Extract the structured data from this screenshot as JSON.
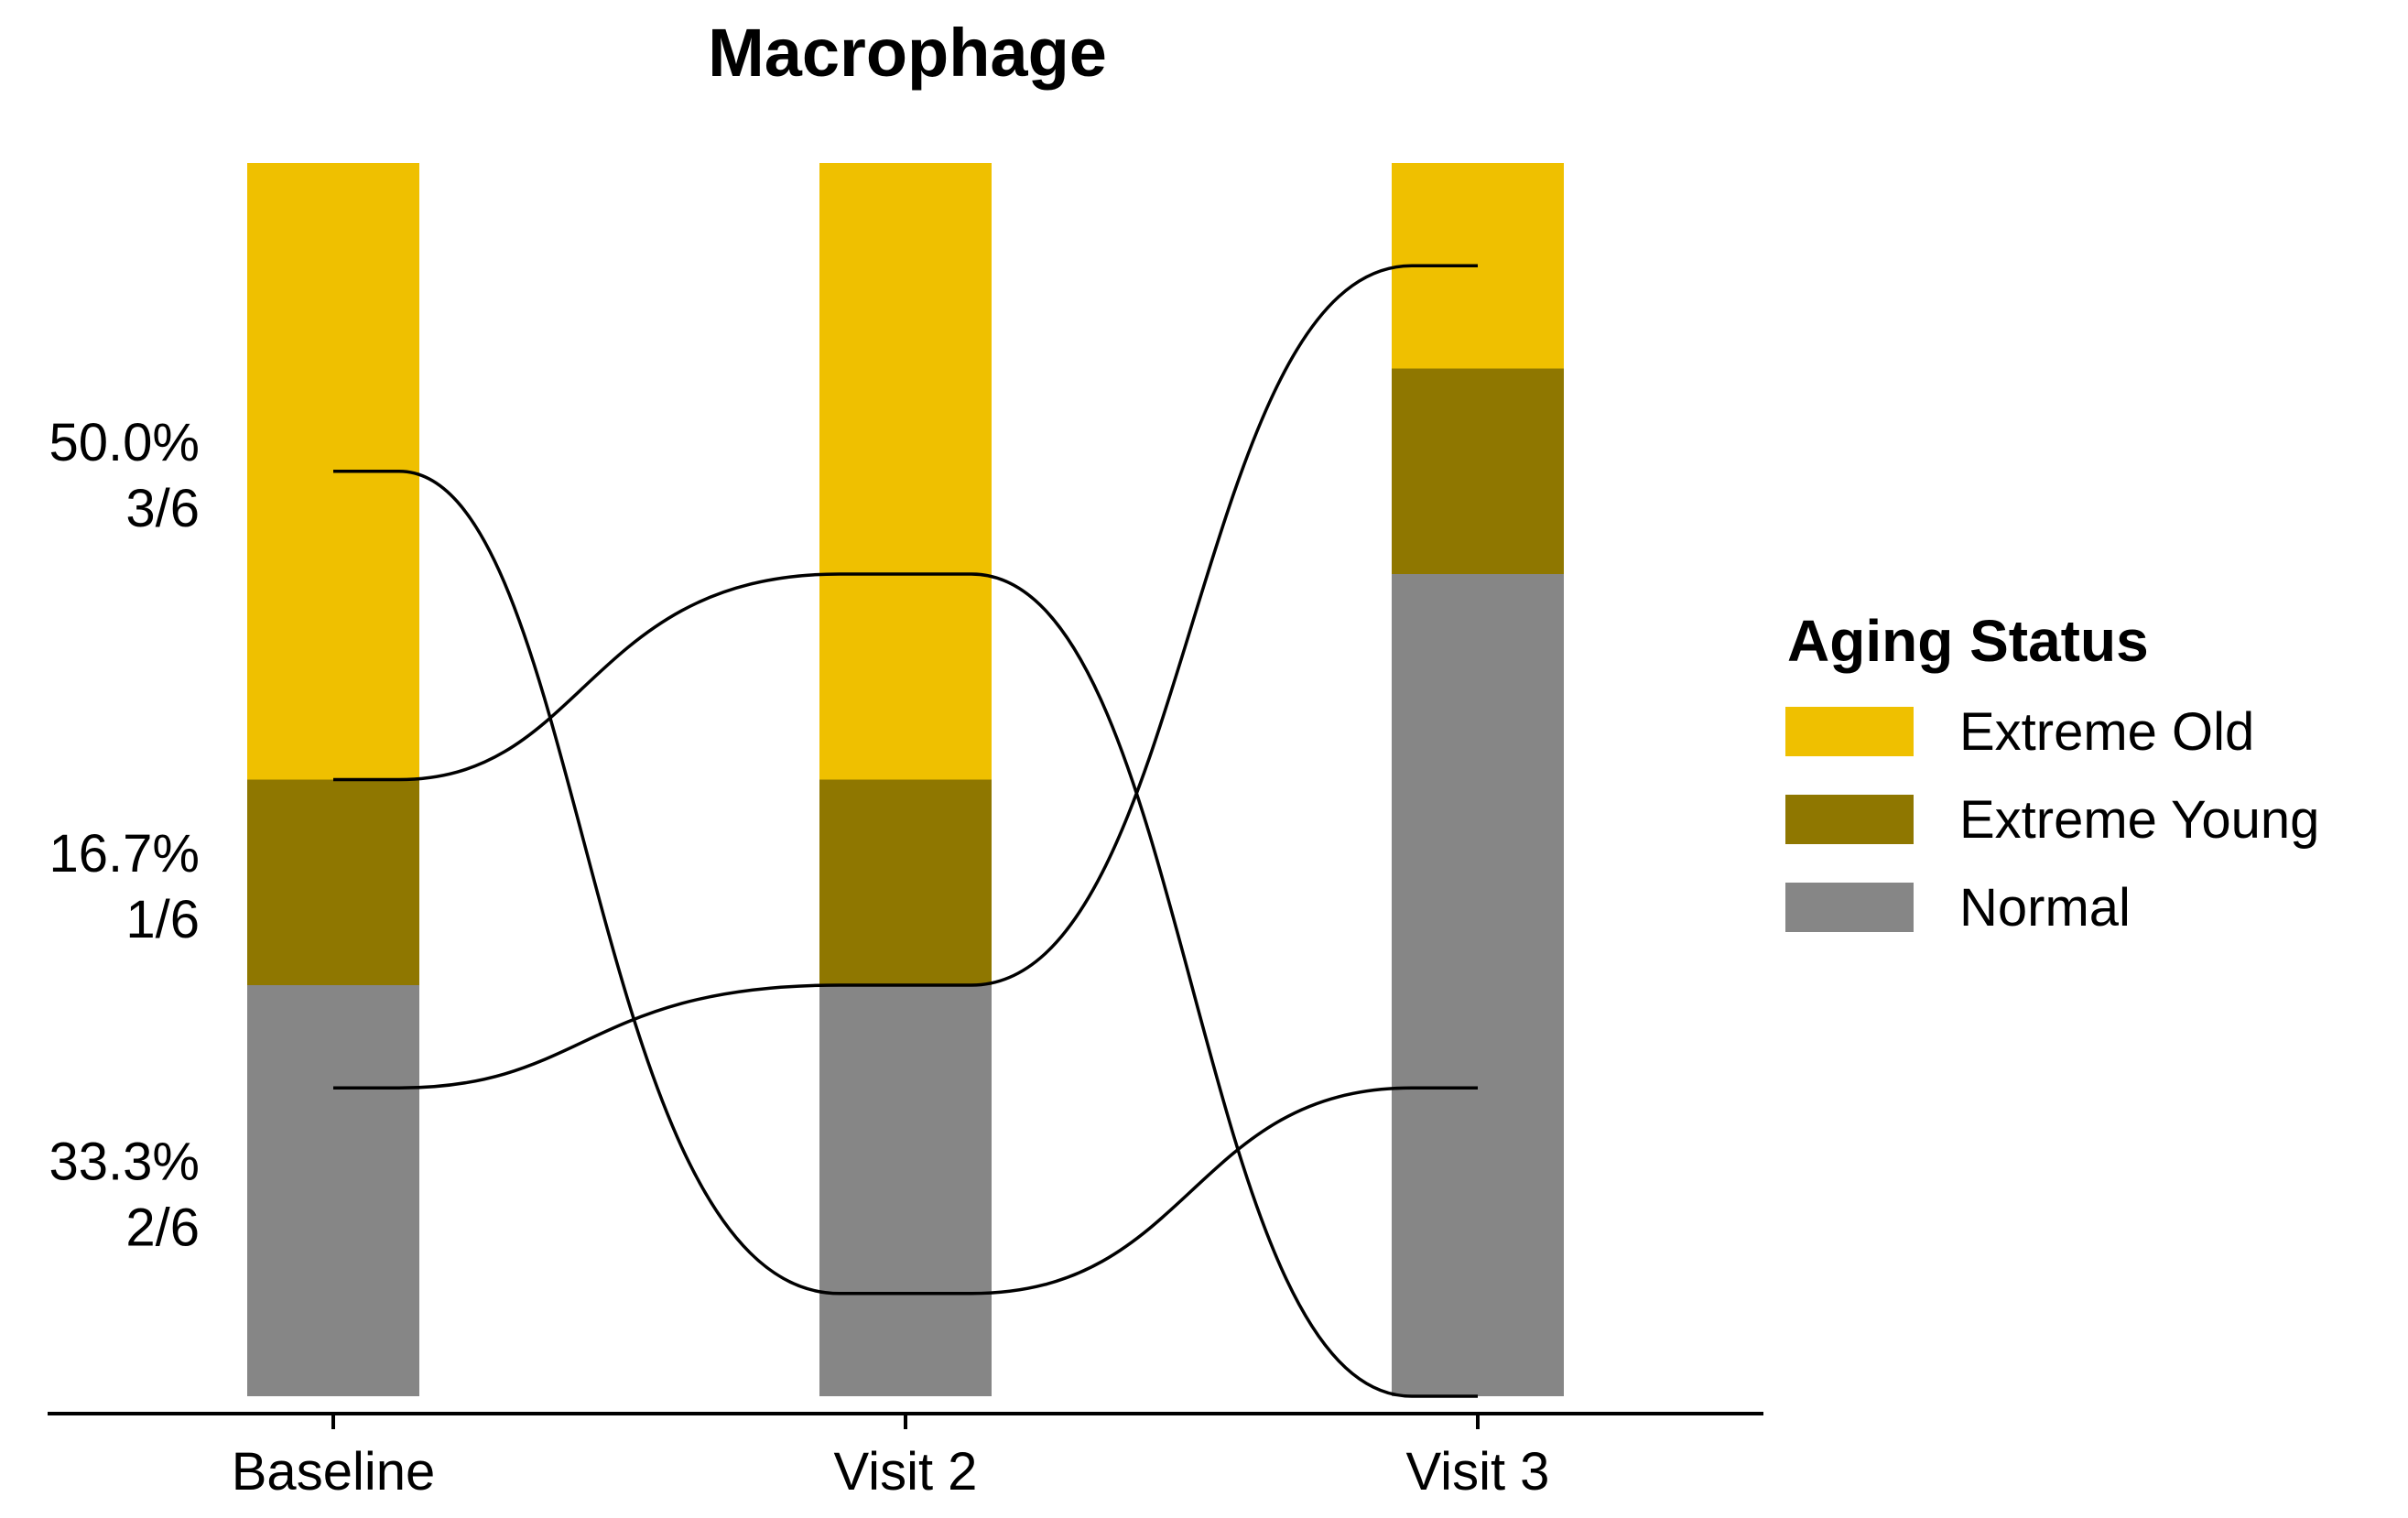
{
  "chart_data": {
    "type": "bar",
    "subtype": "stacked-bar-with-alluvial-flows",
    "title": "Macrophage",
    "categories": [
      "Baseline",
      "Visit 2",
      "Visit 3"
    ],
    "legend": {
      "title": "Aging Status",
      "position": "right",
      "items": [
        {
          "name": "Extreme Old",
          "color": "#EFC000"
        },
        {
          "name": "Extreme Young",
          "color": "#8F7700"
        },
        {
          "name": "Normal",
          "color": "#868686"
        }
      ]
    },
    "series": [
      {
        "name": "Extreme Old",
        "values": [
          3,
          3,
          1
        ]
      },
      {
        "name": "Extreme Young",
        "values": [
          1,
          1,
          1
        ]
      },
      {
        "name": "Normal",
        "values": [
          2,
          2,
          4
        ]
      }
    ],
    "total": 6,
    "baseline_labels": [
      {
        "percent": "50.0%",
        "fraction": "3/6"
      },
      {
        "percent": "16.7%",
        "fraction": "1/6"
      },
      {
        "percent": "33.3%",
        "fraction": "2/6"
      }
    ],
    "flows": [
      {
        "ranks": [
          1.5,
          5.5,
          4.5
        ]
      },
      {
        "ranks": [
          3.0,
          2.0,
          6.0
        ]
      },
      {
        "ranks": [
          4.5,
          4.0,
          0.5
        ]
      }
    ],
    "ylim": [
      0,
      6
    ]
  }
}
